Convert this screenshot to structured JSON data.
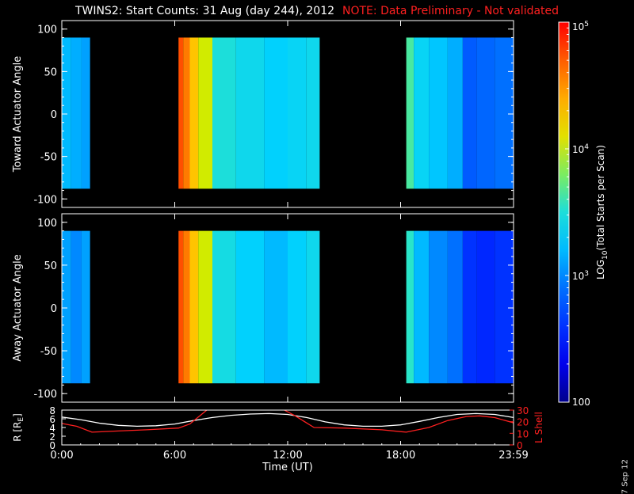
{
  "header": {
    "title": "TWINS2: Start Counts: 31 Aug (day 244), 2012",
    "note": "NOTE: Data Preliminary - Not validated"
  },
  "footer": {
    "datestamp": "7 Sep 12"
  },
  "colors": {
    "background": "#000000",
    "axes": "#ffffff",
    "note": "#ff2020",
    "r_line": "#ffffff",
    "lshell_line": "#ff2020"
  },
  "chart_data": [
    {
      "type": "heatmap",
      "panel": "toward",
      "ylabel": "Toward Actuator Angle",
      "ylim": [
        -110,
        110
      ],
      "yticks": [
        100,
        50,
        0,
        -50,
        -100
      ],
      "x_range_hours": [
        0,
        24
      ],
      "angle_range": [
        -88,
        90
      ],
      "data_intervals_hours": [
        [
          0,
          1.5
        ],
        [
          6.2,
          13.7
        ],
        [
          18.3,
          24
        ]
      ],
      "time_hours": [
        0.2,
        0.8,
        1.3,
        6.3,
        6.6,
        7.0,
        7.5,
        8.5,
        10,
        11.5,
        12.5,
        13.5,
        18.4,
        19,
        20,
        21,
        21.6,
        22.5,
        23.5
      ],
      "log10_counts": [
        3.2,
        3.15,
        3.1,
        4.75,
        4.6,
        4.3,
        4.0,
        3.5,
        3.4,
        3.3,
        3.35,
        3.4,
        3.7,
        3.35,
        3.25,
        3.15,
        2.8,
        2.85,
        2.9
      ]
    },
    {
      "type": "heatmap",
      "panel": "away",
      "ylabel": "Away Actuator Angle",
      "ylim": [
        -110,
        110
      ],
      "yticks": [
        100,
        50,
        0,
        -50,
        -100
      ],
      "x_range_hours": [
        0,
        24
      ],
      "angle_range": [
        -88,
        90
      ],
      "data_intervals_hours": [
        [
          0,
          1.5
        ],
        [
          6.2,
          13.7
        ],
        [
          18.3,
          24
        ]
      ],
      "time_hours": [
        0.2,
        0.8,
        1.3,
        6.3,
        6.6,
        7.0,
        7.5,
        8.5,
        10,
        11.5,
        12.5,
        13.5,
        18.4,
        19,
        20,
        21,
        21.6,
        22.5,
        23.5
      ],
      "log10_counts": [
        3.1,
        3.0,
        3.1,
        4.75,
        4.6,
        4.3,
        4.0,
        3.45,
        3.3,
        3.2,
        3.3,
        3.4,
        3.6,
        3.2,
        3.0,
        2.9,
        2.6,
        2.55,
        2.6
      ]
    },
    {
      "type": "line",
      "panel": "orbit",
      "xlabel": "Time (UT)",
      "xticks": [
        "0:00",
        "6:00",
        "12:00",
        "18:00",
        "23:59"
      ],
      "xtick_hours": [
        0,
        6,
        12,
        18,
        24
      ],
      "ylabel": "R [R",
      "ylabel_sub": "E",
      "ylabel_end": "]",
      "ylim": [
        0,
        8
      ],
      "yticks": [
        0,
        2,
        4,
        6,
        8
      ],
      "y2label": "L Shell",
      "y2lim": [
        0,
        30
      ],
      "y2ticks": [
        0,
        10,
        20,
        30
      ],
      "series": [
        {
          "axis": "left",
          "x": [
            0,
            1,
            2,
            3,
            4,
            5,
            6,
            7,
            8,
            9,
            10,
            11,
            12,
            13,
            14,
            15,
            16,
            17,
            18,
            19,
            20,
            21,
            22,
            23,
            24
          ],
          "y": [
            6.4,
            5.8,
            5.0,
            4.5,
            4.3,
            4.4,
            4.8,
            5.6,
            6.3,
            6.8,
            7.1,
            7.2,
            7.0,
            6.3,
            5.3,
            4.6,
            4.3,
            4.3,
            4.6,
            5.4,
            6.3,
            7.0,
            7.2,
            7.0,
            6.3
          ]
        },
        {
          "axis": "right",
          "x": [
            0,
            0.8,
            1.6,
            3,
            4.5,
            6.2,
            6.8,
            7.4,
            8.0
          ],
          "y": [
            18.5,
            16,
            11,
            12,
            13,
            14.5,
            18,
            26,
            34
          ]
        },
        {
          "axis": "right",
          "x": [
            11.6,
            12.4,
            13.4,
            15,
            17,
            18.3,
            19.5,
            20.5,
            21.5,
            22.2,
            23,
            24
          ],
          "y": [
            32,
            25,
            15,
            14.5,
            13,
            11,
            15,
            21,
            24.5,
            25,
            23.5,
            19
          ]
        }
      ]
    }
  ],
  "colorbar": {
    "label": "LOG",
    "label_sub": "10",
    "label_rest": "(Total Starts per Scan)",
    "log_range": [
      2,
      5
    ],
    "ticks": [
      {
        "log": 5,
        "base": "10",
        "exp": "5"
      },
      {
        "log": 4,
        "base": "10",
        "exp": "4"
      },
      {
        "log": 3,
        "base": "10",
        "exp": "3"
      },
      {
        "log": 2,
        "base": "100",
        "exp": ""
      }
    ]
  }
}
